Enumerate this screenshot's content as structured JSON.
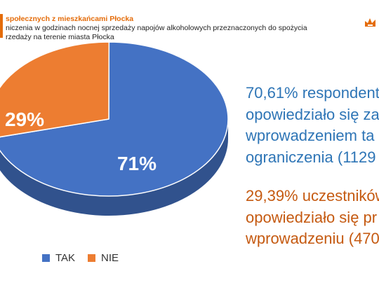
{
  "header": {
    "title": "społecznych z mieszkańcami Płocka",
    "subtitle_line1": "niczenia w godzinach nocnej sprzedaży napojów alkoholowych przeznaczonych do spożycia",
    "subtitle_line2": "rzedaży na terenie miasta Płocka",
    "accent_color": "#e46c0a",
    "logo_icon": "city-crest-icon"
  },
  "chart_data": {
    "type": "pie",
    "categories": [
      "TAK",
      "NIE"
    ],
    "values": [
      71,
      29
    ],
    "labels": [
      "71%",
      "29%"
    ],
    "colors": [
      "#4472c4",
      "#ed7d31"
    ],
    "legend_position": "bottom-left",
    "style": "3d"
  },
  "text_blocks": {
    "yes": {
      "lines": [
        "70,61% respondent",
        "opowiedziało się za",
        "wprowadzeniem ta",
        "ograniczenia (1129"
      ],
      "color": "#2e75b6"
    },
    "no": {
      "lines": [
        "29,39% uczestników",
        "opowiedziało się pr",
        "wprowadzeniu (470"
      ],
      "color": "#c55a11"
    }
  }
}
